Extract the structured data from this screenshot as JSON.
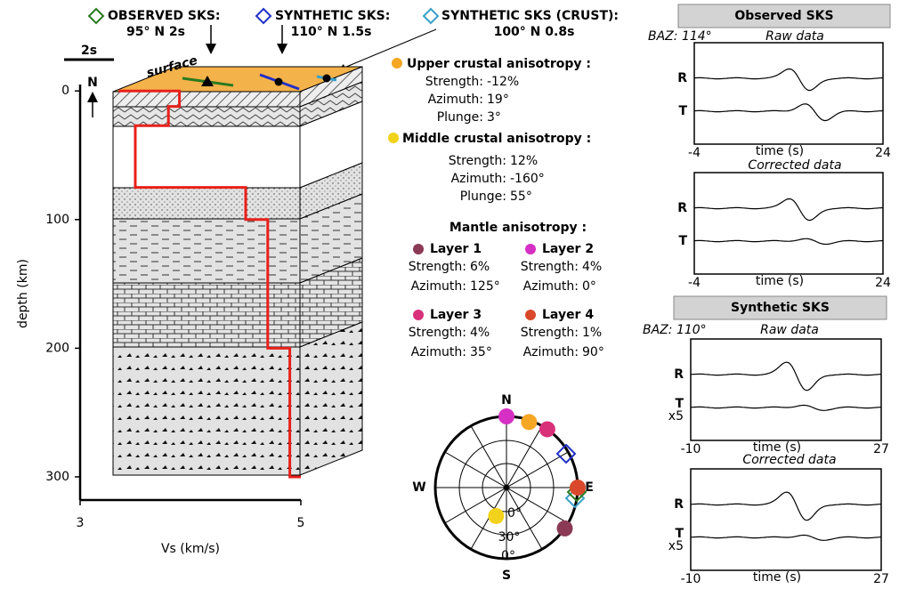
{
  "header": {
    "observed": {
      "label": "OBSERVED SKS:",
      "value": "95° N  2s"
    },
    "synthetic": {
      "label": "SYNTHETIC SKS:",
      "value": "110° N  1.5s"
    },
    "crust": {
      "label": "SYNTHETIC SKS (CRUST):",
      "value": "100° N  0.8s"
    },
    "scale_bar": "2s"
  },
  "chart_data": {
    "type": "line",
    "x_label": "Vs (km/s)",
    "y_label": "depth (km)",
    "north": "N",
    "surface": "surface",
    "color": "#e8201a",
    "x": [
      3.35,
      3.9,
      3.9,
      3.8,
      3.8,
      3.5,
      3.5,
      4.5,
      4.5,
      4.7,
      4.7,
      4.9,
      4.9,
      5.0
    ],
    "values": [
      0,
      0,
      12,
      12,
      27,
      27,
      75,
      75,
      100,
      100,
      200,
      200,
      300,
      300
    ],
    "xlim": [
      3,
      5
    ],
    "ylim": [
      318,
      -5
    ],
    "xticks": [
      3,
      5
    ],
    "yticks": [
      0,
      100,
      200,
      300
    ]
  },
  "anisotropy": {
    "labels": {
      "strength": "Strength:",
      "azimuth": "Azimuth:",
      "plunge": "Plunge:"
    },
    "upper": {
      "title": "Upper crustal anisotropy :",
      "color": "#f5a623",
      "strength": "-12%",
      "azimuth": {
        "value": 19,
        "label": "19°"
      },
      "plunge": {
        "value": 3,
        "label": "3°"
      }
    },
    "middle": {
      "title": "Middle crustal anisotropy :",
      "color": "#f2d21b",
      "strength": "12%",
      "azimuth": {
        "value": -160,
        "label": "-160°"
      },
      "plunge": {
        "value": 55,
        "label": "55°"
      }
    },
    "mantle_title": "Mantle anisotropy :",
    "layers": [
      {
        "name": "Layer 1",
        "color": "#8b3a55",
        "strength": "6%",
        "azimuth": {
          "value": 125,
          "label": "125°"
        }
      },
      {
        "name": "Layer 2",
        "color": "#d62fc4",
        "strength": "4%",
        "azimuth": {
          "value": 0,
          "label": "0°"
        }
      },
      {
        "name": "Layer 3",
        "color": "#d9307a",
        "strength": "4%",
        "azimuth": {
          "value": 35,
          "label": "35°"
        }
      },
      {
        "name": "Layer 4",
        "color": "#d9482b",
        "strength": "1%",
        "azimuth": {
          "value": 90,
          "label": "90°"
        }
      }
    ]
  },
  "stereonet": {
    "north": "N",
    "east": "E",
    "south": "S",
    "west": "W",
    "rings": [
      "0°",
      "30°",
      "0°"
    ]
  },
  "panels": [
    {
      "title": "Observed SKS",
      "baz": "BAZ: 114°",
      "raw": "Raw data",
      "corrected": "Corrected data",
      "x_label": "time (s)",
      "xticks": [
        -4,
        24
      ],
      "traces": [
        "R",
        "T"
      ]
    },
    {
      "title": "Synthetic SKS",
      "baz": "BAZ: 110°",
      "raw": "Raw data",
      "corrected": "Corrected data",
      "x_label": "time (s)",
      "xticks": [
        -10,
        27
      ],
      "traces": [
        "R",
        "T"
      ],
      "t_scale": "x5"
    }
  ]
}
